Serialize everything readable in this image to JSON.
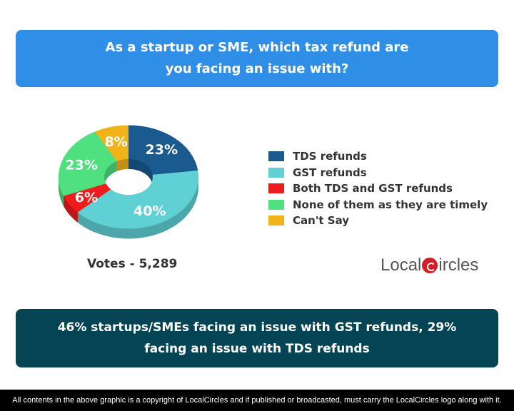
{
  "question": "As a startup or SME, which tax refund are you facing an issue with?",
  "chart_data": {
    "type": "pie",
    "donut": true,
    "categories": [
      "TDS refunds",
      "GST refunds",
      "Both TDS and GST refunds",
      "None of them as they are timely",
      "Can't Say"
    ],
    "values": [
      23,
      40,
      6,
      23,
      8
    ],
    "labels": [
      "23%",
      "40%",
      "6%",
      "23%",
      "8%"
    ],
    "colors": [
      "#1a5a8f",
      "#5fd0d4",
      "#ee1c1c",
      "#4fe07f",
      "#f2b21a"
    ],
    "legend": "right"
  },
  "votes": "Votes - 5,289",
  "logo": {
    "left": "Local",
    "right": "ircles"
  },
  "conclusion": "46% startups/SMEs facing an issue with GST refunds, 29% facing an issue with TDS refunds",
  "footer": "All contents in the above graphic is a copyright of LocalCircles and if published or broadcasted, must carry the LocalCircles logo along with it."
}
